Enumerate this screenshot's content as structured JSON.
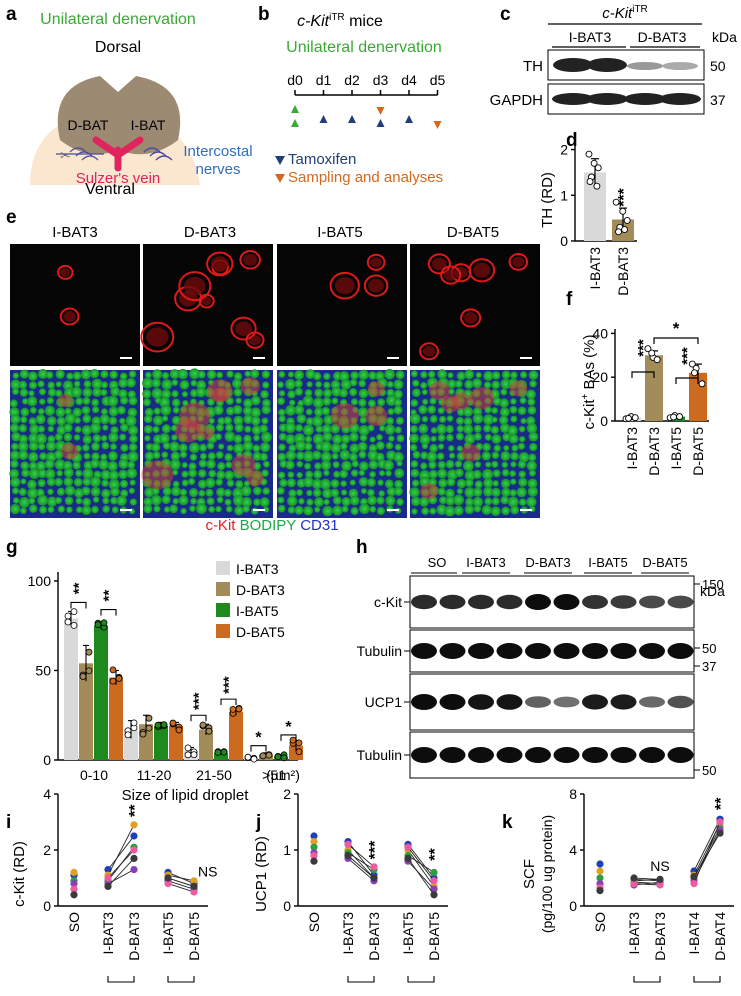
{
  "panels": {
    "a": "a",
    "b": "b",
    "c": "c",
    "d": "d",
    "e": "e",
    "f": "f",
    "g": "g",
    "h": "h",
    "i": "i",
    "j": "j",
    "k": "k"
  },
  "a": {
    "title": "Unilateral denervation",
    "dorsal": "Dorsal",
    "ventral": "Ventral",
    "dbat": "D-BAT",
    "ibat": "I-BAT",
    "vein": "Sulzer's vein",
    "nerves1": "Intercostal",
    "nerves2": "nerves"
  },
  "b": {
    "mice": "c-Kit",
    "mice_sup": "iTR",
    "mice_suffix": " mice",
    "denervation": "Unilateral denervation",
    "days": [
      "d0",
      "d1",
      "d2",
      "d3",
      "d4",
      "d5"
    ],
    "tamoxifen": "Tamoxifen",
    "sampling": "Sampling and analyses",
    "colors": {
      "green": "#3aa935",
      "blue": "#1f3f7a",
      "orange": "#d2691e"
    }
  },
  "c": {
    "header": "c-Kit",
    "header_sup": "iTR",
    "groups": [
      "I-BAT3",
      "D-BAT3"
    ],
    "kda": "kDa",
    "bands": [
      {
        "name": "TH",
        "mw": "50"
      },
      {
        "name": "GAPDH",
        "mw": "37"
      }
    ]
  },
  "d": {
    "ylabel": "TH (RD)",
    "yticks": [
      "0",
      "1",
      "2"
    ],
    "categories": [
      "I-BAT3",
      "D-BAT3"
    ],
    "sig": "***",
    "chart_data": {
      "type": "bar",
      "categories": [
        "I-BAT3",
        "D-BAT3"
      ],
      "values": [
        1.5,
        0.47
      ],
      "errors": [
        0.3,
        0.25
      ],
      "points": [
        [
          1.9,
          1.7,
          1.6,
          1.4,
          1.2,
          1.3
        ],
        [
          0.85,
          0.65,
          0.45,
          0.3,
          0.25,
          0.2
        ]
      ],
      "ylabel": "TH (RD)",
      "ylim": [
        0,
        2.1
      ]
    }
  },
  "e": {
    "cols": [
      "I-BAT3",
      "D-BAT3",
      "I-BAT5",
      "D-BAT5"
    ],
    "legend": {
      "ckit": "c-Kit",
      "bodipy": "BODIPY",
      "cd31": "CD31"
    }
  },
  "f": {
    "ylabel_pre": "c-Kit",
    "ylabel_sup": "+",
    "ylabel_post": " BAs (%)",
    "yticks": [
      "0",
      "20",
      "40"
    ],
    "categories": [
      "I-BAT3",
      "D-BAT3",
      "I-BAT5",
      "D-BAT5"
    ],
    "sig": [
      "***",
      "***",
      "*"
    ],
    "chart_data": {
      "type": "bar",
      "categories": [
        "I-BAT3",
        "D-BAT3",
        "I-BAT5",
        "D-BAT5"
      ],
      "values": [
        1.5,
        30,
        2,
        22
      ],
      "errors": [
        0.6,
        2,
        0.6,
        4
      ],
      "points": [
        [
          1,
          2,
          1.5,
          1.2
        ],
        [
          33,
          29,
          28,
          31
        ],
        [
          1.5,
          2.5,
          2,
          1.8
        ],
        [
          26,
          24,
          17,
          22
        ]
      ],
      "ylabel": "c-Kit+ BAs (%)",
      "ylim": [
        0,
        42
      ]
    }
  },
  "g": {
    "xlabel": "Size of lipid droplet",
    "yticks": [
      "0",
      "50",
      "100"
    ],
    "categories": [
      "0-10",
      "11-20",
      "21-50",
      ">51"
    ],
    "unit": "(µm²)",
    "legend": [
      "I-BAT3",
      "D-BAT3",
      "I-BAT5",
      "D-BAT5"
    ],
    "sig": [
      "**",
      "**",
      "***",
      "***",
      "*",
      "*"
    ],
    "chart_data": {
      "type": "bar",
      "categories": [
        "0-10",
        "11-20",
        "21-50",
        ">51"
      ],
      "series": [
        {
          "name": "I-BAT3",
          "color": "#d9d9d9",
          "values": [
            79,
            17,
            5,
            1
          ]
        },
        {
          "name": "D-BAT3",
          "color": "#a38b5a",
          "values": [
            54,
            20,
            17,
            3
          ]
        },
        {
          "name": "I-BAT5",
          "color": "#1e8a1e",
          "values": [
            75,
            19,
            4,
            2
          ]
        },
        {
          "name": "D-BAT5",
          "color": "#cc6a1f",
          "values": [
            46,
            19,
            27,
            8
          ]
        }
      ],
      "errors": [
        [
          4,
          5,
          2,
          1
        ],
        [
          10,
          5,
          3,
          1
        ],
        [
          2,
          2,
          1,
          1
        ],
        [
          4,
          2,
          2,
          3
        ]
      ],
      "ylim": [
        0,
        105
      ]
    }
  },
  "h": {
    "groups": [
      "SO",
      "I-BAT3",
      "D-BAT3",
      "I-BAT5",
      "D-BAT5"
    ],
    "kda": "kDa",
    "blots": [
      {
        "name": "c-Kit",
        "marks": [
          "150"
        ]
      },
      {
        "name": "Tubulin",
        "marks": [
          "50"
        ]
      },
      {
        "name": "UCP1",
        "marks": [
          "37"
        ]
      },
      {
        "name": "Tubulin",
        "marks": [
          "50"
        ]
      }
    ]
  },
  "i": {
    "ylabel": "c-Kit (RD)",
    "yticks": [
      "0",
      "2",
      "4"
    ],
    "categories": [
      "SO",
      "I-BAT3",
      "D-BAT3",
      "I-BAT5",
      "D-BAT5"
    ],
    "sig": "**",
    "ns": "NS",
    "chart_data": {
      "type": "scatter",
      "categories": [
        "SO",
        "I-BAT3",
        "D-BAT3",
        "I-BAT5",
        "D-BAT5"
      ],
      "pairs": [
        [
          [
            1.3,
            2.5
          ],
          [
            1.1,
            2.9
          ],
          [
            0.9,
            2.1
          ],
          [
            0.8,
            1.3
          ],
          [
            1.0,
            2.0
          ],
          [
            0.7,
            1.7
          ]
        ],
        [
          [
            1.2,
            0.8
          ],
          [
            1.1,
            0.9
          ],
          [
            1.0,
            0.7
          ],
          [
            0.9,
            0.6
          ],
          [
            0.8,
            0.5
          ],
          [
            1.0,
            0.7
          ]
        ]
      ],
      "so": [
        1.1,
        1.2,
        0.9,
        0.8,
        0.6,
        0.4
      ],
      "ylim": [
        0,
        4
      ]
    }
  },
  "j": {
    "ylabel": "UCP1 (RD)",
    "yticks": [
      "0",
      "1",
      "2"
    ],
    "categories": [
      "SO",
      "I-BAT3",
      "D-BAT3",
      "I-BAT5",
      "D-BAT5"
    ],
    "sig": [
      "***",
      "**"
    ],
    "chart_data": {
      "type": "scatter",
      "categories": [
        "SO",
        "I-BAT3",
        "D-BAT3",
        "I-BAT5",
        "D-BAT5"
      ],
      "pairs": [
        [
          [
            1.15,
            0.55
          ],
          [
            1.0,
            0.5
          ],
          [
            0.95,
            0.65
          ],
          [
            0.85,
            0.45
          ],
          [
            1.1,
            0.7
          ],
          [
            0.9,
            0.5
          ]
        ],
        [
          [
            1.1,
            0.5
          ],
          [
            1.0,
            0.35
          ],
          [
            0.9,
            0.6
          ],
          [
            0.8,
            0.3
          ],
          [
            1.05,
            0.45
          ],
          [
            0.85,
            0.2
          ]
        ]
      ],
      "so": [
        1.25,
        1.15,
        1.05,
        0.95,
        0.9,
        0.8
      ],
      "ylim": [
        0,
        2
      ]
    }
  },
  "k": {
    "ylabel1": "SCF",
    "ylabel2": "(pg/100 ug protein)",
    "yticks": [
      "0",
      "4",
      "8"
    ],
    "categories": [
      "SO",
      "I-BAT3",
      "D-BAT3",
      "I-BAT4",
      "D-BAT4"
    ],
    "sig": "**",
    "ns": "NS",
    "chart_data": {
      "type": "scatter",
      "categories": [
        "SO",
        "I-BAT3",
        "D-BAT3",
        "I-BAT4",
        "D-BAT4"
      ],
      "pairs": [
        [
          [
            1.9,
            1.8
          ],
          [
            1.8,
            1.9
          ],
          [
            1.7,
            1.6
          ],
          [
            1.5,
            1.7
          ],
          [
            1.6,
            1.5
          ],
          [
            2.0,
            1.9
          ]
        ],
        [
          [
            2.5,
            6.2
          ],
          [
            2.2,
            5.9
          ],
          [
            2.0,
            5.6
          ],
          [
            1.8,
            5.4
          ],
          [
            1.6,
            6.0
          ],
          [
            2.1,
            5.2
          ]
        ]
      ],
      "so": [
        3.0,
        2.5,
        2.0,
        1.6,
        1.3,
        1.1
      ],
      "ylim": [
        0,
        8
      ]
    }
  },
  "dot_colors": [
    "#1f3fbf",
    "#e0a020",
    "#2e9e3e",
    "#8a3fb8",
    "#ef5aa0",
    "#3a3a3a"
  ]
}
